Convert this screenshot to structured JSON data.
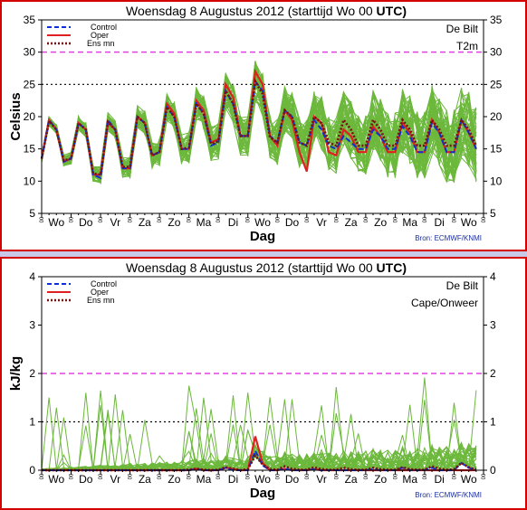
{
  "chart_data": [
    {
      "type": "line",
      "title_prefix": "Woensdag  8 Augustus  2012  (starttijd  Wo 00",
      "title_suffix": "UTC)",
      "station": "De Bilt",
      "variable": "T2m",
      "ylabel": "Celsius",
      "xlabel": "Dag",
      "source": "Bron: ECMWF/KNMI",
      "ylim": [
        5,
        35
      ],
      "yticks": [
        5,
        10,
        15,
        20,
        25,
        30,
        35
      ],
      "xlim": [
        0,
        15
      ],
      "day_labels": [
        "Wo",
        "Do",
        "Vr",
        "Za",
        "Zo",
        "Ma",
        "Di",
        "Wo",
        "Do",
        "Vr",
        "Za",
        "Zo",
        "Ma",
        "Di",
        "Wo"
      ],
      "hour_label": "00",
      "ref_lines": [
        {
          "value": 30,
          "color": "#e040e0",
          "style": "dashed"
        },
        {
          "value": 25,
          "color": "#000000",
          "style": "dotted"
        }
      ],
      "legend": [
        "Control",
        "Oper",
        "Ens mn"
      ],
      "colors": {
        "control": "#1030d0",
        "oper": "#e02020",
        "ensmean": "#7a1010",
        "members": "#6cb83c"
      },
      "x": [
        0,
        0.25,
        0.5,
        0.75,
        1,
        1.25,
        1.5,
        1.75,
        2,
        2.25,
        2.5,
        2.75,
        3,
        3.25,
        3.5,
        3.75,
        4,
        4.25,
        4.5,
        4.75,
        5,
        5.25,
        5.5,
        5.75,
        6,
        6.25,
        6.5,
        6.75,
        7,
        7.25,
        7.5,
        7.75,
        8,
        8.25,
        8.5,
        8.75,
        9,
        9.25,
        9.5,
        9.75,
        10,
        10.25,
        10.5,
        10.75,
        11,
        11.25,
        11.5,
        11.75,
        12,
        12.25,
        12.5,
        12.75,
        13,
        13.25,
        13.5,
        13.75,
        14,
        14.25,
        14.5,
        14.75
      ],
      "series": [
        {
          "name": "Control",
          "values": [
            13.5,
            19.5,
            18,
            13,
            13.5,
            19,
            18,
            11,
            10.5,
            19.5,
            18,
            12,
            12,
            20,
            19,
            14,
            14.5,
            21.5,
            20,
            15,
            15,
            22,
            20.5,
            15.5,
            16,
            24,
            22,
            17,
            17,
            25.5,
            24,
            17,
            16,
            21,
            20,
            16,
            15.5,
            19.5,
            18,
            15.5,
            15,
            17,
            16,
            15,
            15,
            18,
            17,
            15,
            15,
            18.5,
            17,
            14.5,
            14.5,
            19,
            17.5,
            14.5,
            14.5,
            19.5,
            17.5,
            15
          ]
        },
        {
          "name": "Oper",
          "values": [
            13.5,
            19.5,
            18,
            13,
            13.5,
            19,
            18,
            11,
            11,
            19,
            18,
            12,
            12,
            20,
            19,
            14,
            14.5,
            22,
            20.5,
            15,
            15,
            22.5,
            21,
            16,
            16.5,
            25,
            23,
            17,
            17,
            27,
            25,
            17,
            15.5,
            21,
            19.5,
            14.5,
            11.5,
            20,
            19,
            14.5,
            14,
            18,
            17,
            14.5,
            14.5,
            18.5,
            17,
            14.5,
            14.5,
            19,
            17.5,
            14.5,
            14.5,
            19.5,
            17.5,
            14.5,
            14.5,
            19.5,
            17.5,
            15
          ]
        },
        {
          "name": "Ens mn",
          "values": [
            13.5,
            19.3,
            18,
            13.2,
            13.5,
            19,
            18,
            11.2,
            11,
            19.2,
            18,
            12.2,
            12.2,
            20,
            19,
            14,
            14.5,
            21.5,
            20,
            15,
            15.2,
            22,
            20.5,
            15.8,
            16.2,
            24,
            22,
            17,
            17,
            25.5,
            23.5,
            16.8,
            16,
            21,
            20,
            16,
            15.5,
            20,
            19,
            16,
            15.5,
            19.5,
            18,
            15.5,
            15.5,
            19.5,
            18,
            15.5,
            15.5,
            19.5,
            18,
            15.5,
            15.5,
            19.5,
            18,
            15.5,
            15.5,
            19.5,
            18,
            15.5
          ]
        }
      ]
    },
    {
      "type": "line",
      "title_prefix": "Woensdag  8 Augustus  2012  (starttijd  Wo 00",
      "title_suffix": "UTC)",
      "station": "De Bilt",
      "variable": "Cape/Onweer",
      "ylabel": "kJ/kg",
      "xlabel": "Dag",
      "source": "Bron: ECMWF/KNMI",
      "ylim": [
        0,
        4
      ],
      "yticks": [
        0,
        1,
        2,
        3,
        4
      ],
      "xlim": [
        0,
        15
      ],
      "day_labels": [
        "Wo",
        "Do",
        "Vr",
        "Za",
        "Zo",
        "Ma",
        "Di",
        "Wo",
        "Do",
        "Vr",
        "Za",
        "Zo",
        "Ma",
        "Di",
        "Wo"
      ],
      "hour_label": "00",
      "ref_lines": [
        {
          "value": 2,
          "color": "#e040e0",
          "style": "dashed"
        },
        {
          "value": 1,
          "color": "#000000",
          "style": "dotted"
        }
      ],
      "legend": [
        "Control",
        "Oper",
        "Ens mn"
      ],
      "colors": {
        "control": "#1030d0",
        "oper": "#e02020",
        "ensmean": "#7a1010",
        "members": "#6cb83c"
      },
      "x": [
        0,
        0.25,
        0.5,
        0.75,
        1,
        1.25,
        1.5,
        1.75,
        2,
        2.25,
        2.5,
        2.75,
        3,
        3.25,
        3.5,
        3.75,
        4,
        4.25,
        4.5,
        4.75,
        5,
        5.25,
        5.5,
        5.75,
        6,
        6.25,
        6.5,
        6.75,
        7,
        7.25,
        7.5,
        7.75,
        8,
        8.25,
        8.5,
        8.75,
        9,
        9.25,
        9.5,
        9.75,
        10,
        10.25,
        10.5,
        10.75,
        11,
        11.25,
        11.5,
        11.75,
        12,
        12.25,
        12.5,
        12.75,
        13,
        13.25,
        13.5,
        13.75,
        14,
        14.25,
        14.5,
        14.75
      ],
      "series": [
        {
          "name": "Control",
          "values": [
            0,
            0,
            0,
            0,
            0,
            0,
            0,
            0,
            0,
            0,
            0,
            0,
            0,
            0,
            0,
            0,
            0,
            0,
            0,
            0,
            0,
            0.02,
            0,
            0,
            0,
            0.05,
            0,
            0,
            0,
            0.4,
            0.1,
            0,
            0,
            0.03,
            0,
            0,
            0,
            0.02,
            0,
            0,
            0,
            0,
            0,
            0,
            0,
            0.02,
            0,
            0,
            0,
            0.05,
            0,
            0,
            0,
            0.05,
            0,
            0,
            0,
            0.15,
            0.05,
            0
          ]
        },
        {
          "name": "Oper",
          "values": [
            0,
            0,
            0,
            0,
            0,
            0,
            0,
            0,
            0,
            0,
            0,
            0,
            0,
            0,
            0,
            0,
            0,
            0,
            0,
            0,
            0,
            0.03,
            0,
            0,
            0,
            0.05,
            0.02,
            0,
            0,
            0.7,
            0.15,
            0,
            0,
            0.03,
            0,
            0,
            0,
            0.02,
            0,
            0,
            0,
            0,
            0,
            0,
            0,
            0,
            0,
            0,
            0,
            0,
            0,
            0,
            0,
            0,
            0,
            0,
            0,
            0,
            0,
            0
          ]
        },
        {
          "name": "Ens mn",
          "values": [
            0,
            0,
            0,
            0,
            0,
            0,
            0,
            0,
            0,
            0,
            0,
            0,
            0,
            0,
            0,
            0,
            0,
            0,
            0,
            0,
            0.01,
            0.03,
            0.01,
            0,
            0.01,
            0.06,
            0.03,
            0,
            0.02,
            0.3,
            0.12,
            0.02,
            0.01,
            0.08,
            0.03,
            0.01,
            0.01,
            0.06,
            0.02,
            0.01,
            0.01,
            0.05,
            0.02,
            0.01,
            0.01,
            0.05,
            0.02,
            0.01,
            0.01,
            0.06,
            0.02,
            0.01,
            0.01,
            0.08,
            0.03,
            0.01,
            0.02,
            0.15,
            0.06,
            0.02
          ]
        }
      ]
    }
  ]
}
